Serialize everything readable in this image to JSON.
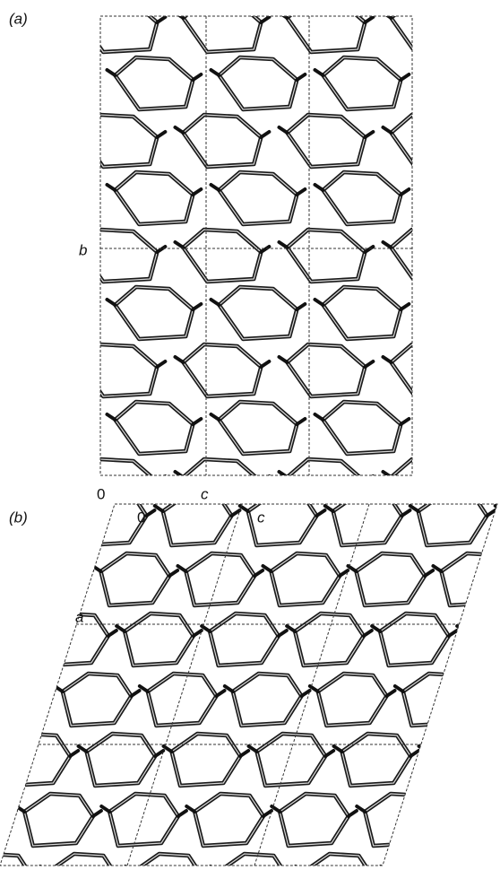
{
  "panel_a": {
    "label": "(a)",
    "axis_b": "b",
    "origin": "0",
    "axis_c": "c"
  },
  "panel_b": {
    "label": "(b)",
    "origin": "0",
    "axis_c": "c",
    "axis_a": "a"
  }
}
